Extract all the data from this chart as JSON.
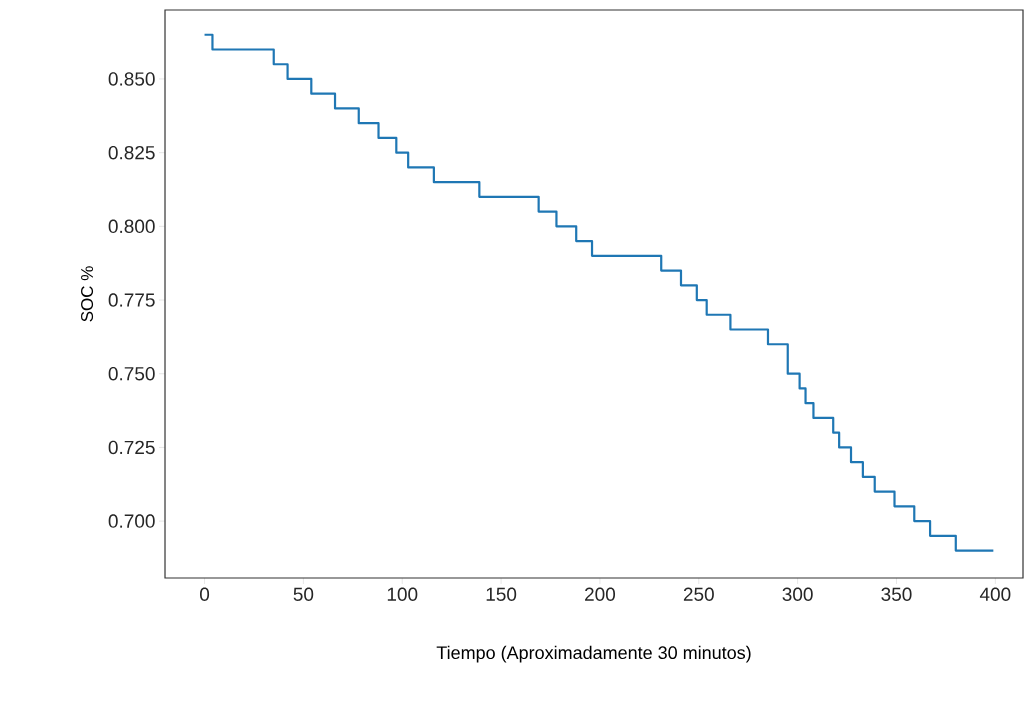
{
  "chart_data": {
    "type": "step",
    "xlabel": "Tiempo (Aproximadamente 30 minutos)",
    "ylabel": "SOC %",
    "x": [
      0,
      4,
      35,
      42,
      54,
      66,
      78,
      88,
      97,
      103,
      116,
      139,
      169,
      178,
      188,
      196,
      231,
      241,
      249,
      254,
      266,
      285,
      295,
      301,
      304,
      308,
      318,
      321,
      327,
      333,
      339,
      349,
      359,
      367,
      380,
      399
    ],
    "values": [
      0.865,
      0.86,
      0.855,
      0.85,
      0.845,
      0.84,
      0.835,
      0.83,
      0.825,
      0.82,
      0.815,
      0.81,
      0.805,
      0.8,
      0.795,
      0.79,
      0.785,
      0.78,
      0.775,
      0.77,
      0.765,
      0.76,
      0.75,
      0.745,
      0.74,
      0.735,
      0.73,
      0.725,
      0.72,
      0.715,
      0.71,
      0.705,
      0.7,
      0.695,
      0.69,
      0.69
    ],
    "color": "#1f77b4",
    "xlim": [
      -20,
      414
    ],
    "ylim": [
      0.6807,
      0.8734
    ],
    "xticks": [
      0,
      50,
      100,
      150,
      200,
      250,
      300,
      350,
      400
    ],
    "yticks": [
      {
        "value": 0.7,
        "label": "0.700"
      },
      {
        "value": 0.725,
        "label": "0.725"
      },
      {
        "value": 0.75,
        "label": "0.750"
      },
      {
        "value": 0.775,
        "label": "0.775"
      },
      {
        "value": 0.8,
        "label": "0.800"
      },
      {
        "value": 0.825,
        "label": "0.825"
      },
      {
        "value": 0.85,
        "label": "0.850"
      }
    ]
  }
}
